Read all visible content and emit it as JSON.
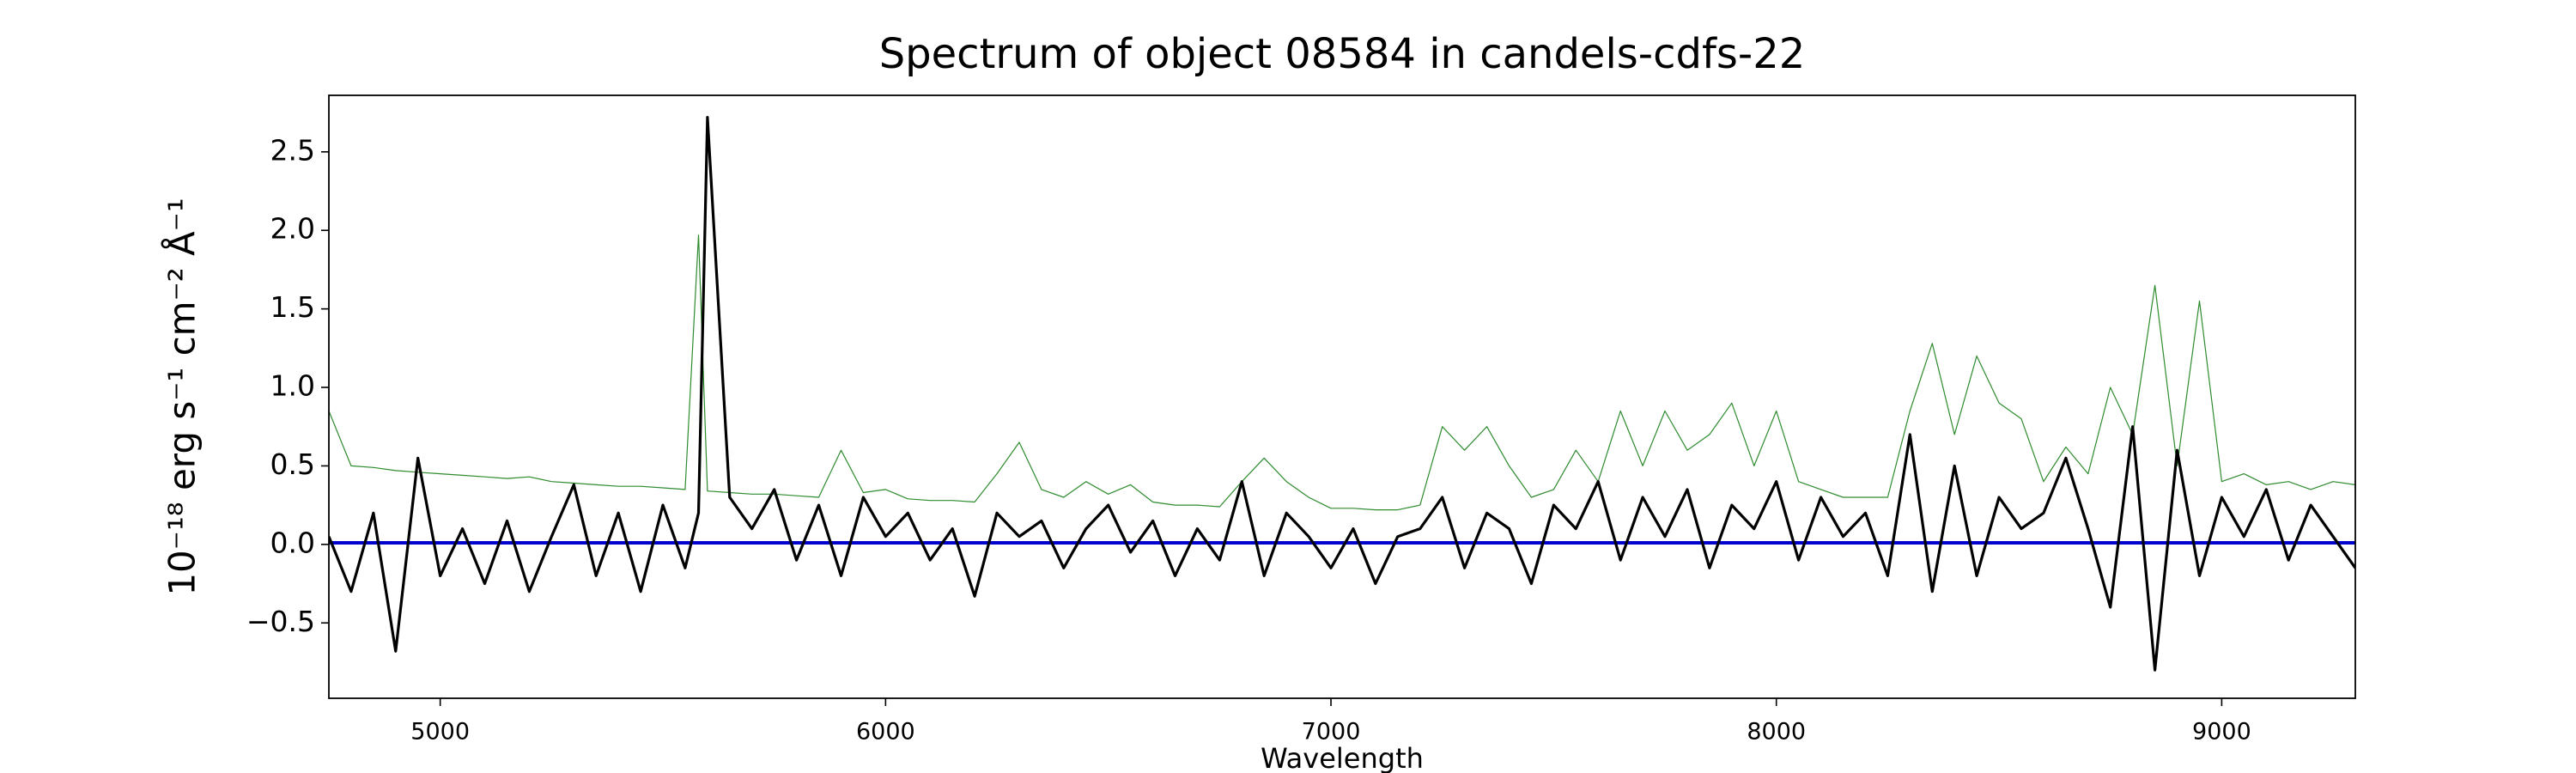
{
  "chart_data": {
    "type": "line",
    "title": "Spectrum of object 08584 in candels-cdfs-22",
    "xlabel": "Wavelength",
    "ylabel": "10⁻¹⁸ erg s⁻¹ cm⁻² Å⁻¹",
    "xlim": [
      4750,
      9300
    ],
    "ylim": [
      -0.98,
      2.86
    ],
    "xticks": [
      5000,
      6000,
      7000,
      8000,
      9000
    ],
    "yticks": [
      {
        "value": -0.5,
        "label": "−0.5"
      },
      {
        "value": 0,
        "label": "0.0"
      },
      0.5,
      {
        "value": 1,
        "label": "1.0"
      },
      1.5,
      {
        "value": 2,
        "label": "2.0"
      },
      2.5
    ],
    "grid": false,
    "x": [
      4750,
      4800,
      4850,
      4900,
      4950,
      5000,
      5050,
      5100,
      5150,
      5200,
      5250,
      5300,
      5350,
      5400,
      5450,
      5500,
      5550,
      5580,
      5600,
      5650,
      5700,
      5750,
      5800,
      5850,
      5900,
      5950,
      6000,
      6050,
      6100,
      6150,
      6200,
      6250,
      6300,
      6350,
      6400,
      6450,
      6500,
      6550,
      6600,
      6650,
      6700,
      6750,
      6800,
      6850,
      6900,
      6950,
      7000,
      7050,
      7100,
      7150,
      7200,
      7250,
      7300,
      7350,
      7400,
      7450,
      7500,
      7550,
      7600,
      7650,
      7700,
      7750,
      7800,
      7850,
      7900,
      7950,
      8000,
      8050,
      8100,
      8150,
      8200,
      8250,
      8300,
      8350,
      8400,
      8450,
      8500,
      8550,
      8600,
      8650,
      8700,
      8750,
      8800,
      8850,
      8900,
      8950,
      9000,
      9050,
      9100,
      9150,
      9200,
      9250,
      9300
    ],
    "series": [
      {
        "color": "#2e8b2e",
        "width": 1.2,
        "values": [
          0.85,
          0.5,
          0.49,
          0.47,
          0.46,
          0.45,
          0.44,
          0.43,
          0.42,
          0.43,
          0.4,
          0.39,
          0.38,
          0.37,
          0.37,
          0.36,
          0.35,
          1.97,
          0.34,
          0.33,
          0.32,
          0.32,
          0.31,
          0.3,
          0.6,
          0.33,
          0.35,
          0.29,
          0.28,
          0.28,
          0.27,
          0.45,
          0.65,
          0.35,
          0.3,
          0.4,
          0.32,
          0.38,
          0.27,
          0.25,
          0.25,
          0.24,
          0.4,
          0.55,
          0.4,
          0.3,
          0.23,
          0.23,
          0.22,
          0.22,
          0.25,
          0.75,
          0.6,
          0.75,
          0.5,
          0.3,
          0.35,
          0.6,
          0.4,
          0.85,
          0.5,
          0.85,
          0.6,
          0.7,
          0.9,
          0.5,
          0.85,
          0.4,
          0.35,
          0.3,
          0.3,
          0.3,
          0.85,
          1.28,
          0.7,
          1.2,
          0.9,
          0.8,
          0.4,
          0.62,
          0.45,
          1.0,
          0.7,
          1.65,
          0.5,
          1.55,
          0.4,
          0.45,
          0.38,
          0.4,
          0.35,
          0.4,
          0.38
        ]
      },
      {
        "color": "#0000cd",
        "width": 4,
        "x": [
          4750,
          9300
        ],
        "values": [
          0.01,
          0.01
        ]
      },
      {
        "color": "#000000",
        "width": 3.2,
        "values": [
          0.05,
          -0.3,
          0.2,
          -0.68,
          0.55,
          -0.2,
          0.1,
          -0.25,
          0.15,
          -0.3,
          0.05,
          0.38,
          -0.2,
          0.2,
          -0.3,
          0.25,
          -0.15,
          0.2,
          2.72,
          0.3,
          0.1,
          0.35,
          -0.1,
          0.25,
          -0.2,
          0.3,
          0.05,
          0.2,
          -0.1,
          0.1,
          -0.33,
          0.2,
          0.05,
          0.15,
          -0.15,
          0.1,
          0.25,
          -0.05,
          0.15,
          -0.2,
          0.1,
          -0.1,
          0.4,
          -0.2,
          0.2,
          0.05,
          -0.15,
          0.1,
          -0.25,
          0.05,
          0.1,
          0.3,
          -0.15,
          0.2,
          0.1,
          -0.25,
          0.25,
          0.1,
          0.4,
          -0.1,
          0.3,
          0.05,
          0.35,
          -0.15,
          0.25,
          0.1,
          0.4,
          -0.1,
          0.3,
          0.05,
          0.2,
          -0.2,
          0.7,
          -0.3,
          0.5,
          -0.2,
          0.3,
          0.1,
          0.2,
          0.55,
          0.1,
          -0.4,
          0.75,
          -0.8,
          0.6,
          -0.2,
          0.3,
          0.05,
          0.35,
          -0.1,
          0.25,
          0.05,
          -0.15
        ]
      }
    ]
  }
}
